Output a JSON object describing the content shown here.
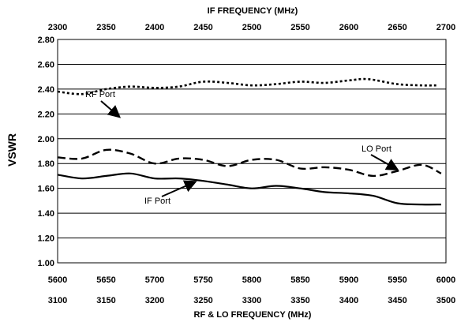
{
  "chart_data": {
    "type": "line",
    "title": "",
    "top_xlabel": "IF FREQUENCY (MHz)",
    "bottom_xlabel": "RF & LO FREQUENCY (MHz)",
    "ylabel": "VSWR",
    "xlim": [
      5600,
      6000
    ],
    "ylim": [
      1.0,
      2.8
    ],
    "y_ticks": [
      "1.00",
      "1.20",
      "1.40",
      "1.60",
      "1.80",
      "2.00",
      "2.20",
      "2.40",
      "2.60",
      "2.80"
    ],
    "x_ticks_rf": [
      "5600",
      "5650",
      "5700",
      "5750",
      "5800",
      "5850",
      "5900",
      "5950",
      "6000"
    ],
    "x_ticks_lo": [
      "3100",
      "3150",
      "3200",
      "3250",
      "3300",
      "3350",
      "3400",
      "3450",
      "3500"
    ],
    "x_ticks_if": [
      "2300",
      "2350",
      "2400",
      "2450",
      "2500",
      "2550",
      "2600",
      "2650",
      "2700"
    ],
    "grid": "horizontal",
    "series": [
      {
        "name": "RF Port",
        "style": "dotted",
        "x": [
          5600,
          5625,
          5650,
          5675,
          5700,
          5725,
          5750,
          5775,
          5800,
          5825,
          5850,
          5875,
          5900,
          5920,
          5950,
          5975,
          5990
        ],
        "values": [
          2.38,
          2.36,
          2.4,
          2.42,
          2.41,
          2.42,
          2.46,
          2.45,
          2.43,
          2.44,
          2.46,
          2.45,
          2.47,
          2.48,
          2.44,
          2.43,
          2.43
        ]
      },
      {
        "name": "LO Port",
        "style": "dashed",
        "x": [
          5600,
          5625,
          5650,
          5675,
          5700,
          5725,
          5750,
          5775,
          5800,
          5825,
          5850,
          5875,
          5900,
          5925,
          5950,
          5975,
          5995
        ],
        "values": [
          1.85,
          1.84,
          1.91,
          1.88,
          1.8,
          1.84,
          1.83,
          1.78,
          1.83,
          1.83,
          1.76,
          1.77,
          1.75,
          1.7,
          1.74,
          1.79,
          1.72
        ]
      },
      {
        "name": "IF Port",
        "style": "solid",
        "x": [
          5600,
          5625,
          5650,
          5675,
          5700,
          5725,
          5750,
          5775,
          5800,
          5825,
          5850,
          5875,
          5900,
          5925,
          5950,
          5975,
          5995
        ],
        "values": [
          1.71,
          1.68,
          1.7,
          1.72,
          1.68,
          1.68,
          1.66,
          1.63,
          1.6,
          1.62,
          1.6,
          1.57,
          1.56,
          1.54,
          1.48,
          1.47,
          1.47
        ]
      }
    ],
    "annotations": [
      {
        "text": "RF Port",
        "series": "RF Port"
      },
      {
        "text": "LO Port",
        "series": "LO Port"
      },
      {
        "text": "IF Port",
        "series": "IF Port"
      }
    ]
  }
}
